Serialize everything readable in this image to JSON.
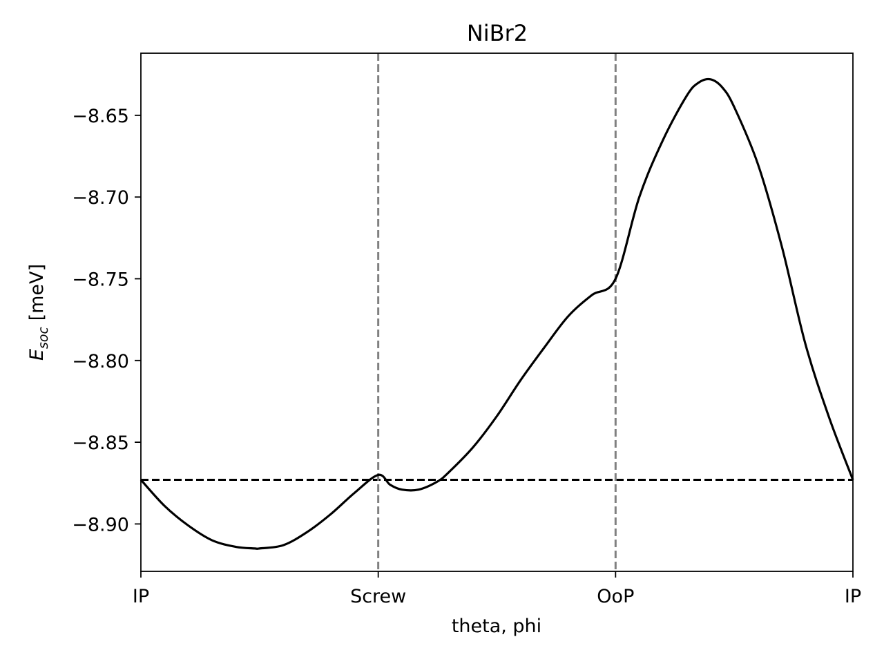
{
  "chart_data": {
    "type": "line",
    "title": "NiBr2",
    "xlabel": "theta, phi",
    "ylabel": {
      "main": "E",
      "subscript": "soc",
      "unit": " [meV]"
    },
    "xlim": [
      0,
      3
    ],
    "ylim": [
      -8.929,
      -8.612
    ],
    "x_ticks": [
      {
        "value": 0,
        "label": "IP"
      },
      {
        "value": 1,
        "label": "Screw"
      },
      {
        "value": 2,
        "label": "OoP"
      },
      {
        "value": 3,
        "label": "IP"
      }
    ],
    "y_ticks": [
      {
        "value": -8.65,
        "label": "−8.65"
      },
      {
        "value": -8.7,
        "label": "−8.70"
      },
      {
        "value": -8.75,
        "label": "−8.75"
      },
      {
        "value": -8.8,
        "label": "−8.80"
      },
      {
        "value": -8.85,
        "label": "−8.85"
      },
      {
        "value": -8.9,
        "label": "−8.90"
      }
    ],
    "grid": false,
    "series": [
      {
        "color": "#000000",
        "style": "solid",
        "x": [
          0,
          0.1,
          0.2,
          0.3,
          0.4,
          0.48,
          0.5,
          0.6,
          0.7,
          0.8,
          0.9,
          1.0,
          1.05,
          1.1,
          1.17,
          1.25,
          1.3,
          1.4,
          1.5,
          1.6,
          1.7,
          1.8,
          1.9,
          2.0,
          2.1,
          2.2,
          2.3,
          2.35,
          2.4,
          2.45,
          2.5,
          2.6,
          2.7,
          2.8,
          2.9,
          3.0
        ],
        "y": [
          -8.873,
          -8.889,
          -8.901,
          -8.91,
          -8.914,
          -8.915,
          -8.915,
          -8.913,
          -8.905,
          -8.894,
          -8.881,
          -8.87,
          -8.876,
          -8.879,
          -8.879,
          -8.874,
          -8.868,
          -8.853,
          -8.834,
          -8.812,
          -8.792,
          -8.773,
          -8.76,
          -8.75,
          -8.7,
          -8.665,
          -8.638,
          -8.63,
          -8.628,
          -8.633,
          -8.645,
          -8.68,
          -8.73,
          -8.79,
          -8.835,
          -8.873
        ]
      }
    ],
    "reference_lines": [
      {
        "orientation": "horizontal",
        "value": -8.873,
        "color": "#000000",
        "style": "dashed"
      },
      {
        "orientation": "vertical",
        "value": 1,
        "color": "#808080",
        "style": "dashed"
      },
      {
        "orientation": "vertical",
        "value": 2,
        "color": "#808080",
        "style": "dashed"
      }
    ]
  }
}
